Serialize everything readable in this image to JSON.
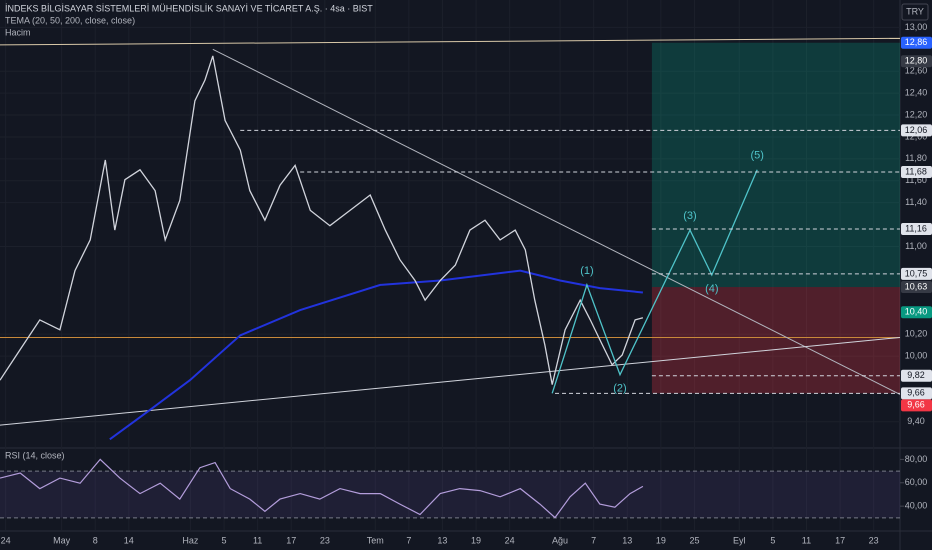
{
  "chart_data": {
    "type": "line",
    "title": "İNDEKS BİLGİSAYAR SİSTEMLERİ MÜHENDİSLİK SANAYİ VE TİCARET A.Ş. · 4sa · BIST",
    "indicator": "TEMA (20, 50, 200, close, close)",
    "volume_label": "Hacim",
    "currency": "TRY",
    "x": [
      0,
      3.6,
      7.1,
      10.7,
      13.4,
      16.1,
      18.8,
      20.5,
      22.3,
      25,
      27.7,
      29.5,
      32.1,
      34.8,
      36.6,
      38,
      40.2,
      42.9,
      44.6,
      47.3,
      50,
      52.7,
      55.4,
      58.9,
      62.5,
      66.1,
      68.8,
      71.4,
      74.1,
      75.9,
      78.6,
      81.3,
      83.9,
      86.6,
      89.3,
      92,
      93.8,
      95.5,
      97.3,
      98.6,
      100.9,
      103.6,
      105.4,
      107.1,
      109.3,
      111.1,
      113.4,
      114.8
    ],
    "series": [
      {
        "color": "#d1d4dc",
        "values": [
          9.78,
          10.06,
          10.33,
          10.24,
          10.78,
          11.06,
          11.79,
          11.15,
          11.61,
          11.7,
          11.51,
          11.06,
          11.42,
          12.33,
          12.52,
          12.74,
          12.15,
          11.88,
          11.51,
          11.24,
          11.56,
          11.74,
          11.33,
          11.19,
          11.33,
          11.47,
          11.15,
          10.88,
          10.69,
          10.51,
          10.69,
          10.83,
          11.15,
          11.24,
          11.06,
          11.15,
          10.97,
          10.51,
          10.1,
          9.74,
          10.24,
          10.51,
          10.33,
          10.15,
          9.92,
          10.01,
          10.33,
          10.35
        ]
      }
    ],
    "overlays": [
      {
        "color": "#2233dd",
        "x": [
          19.6,
          26.8,
          33.9,
          42.9,
          53.6,
          67.9,
          78.6,
          92.9,
          100,
          107.1,
          114.8
        ],
        "values": [
          9.24,
          9.51,
          9.78,
          10.19,
          10.42,
          10.65,
          10.69,
          10.78,
          10.69,
          10.62,
          10.58
        ]
      }
    ],
    "xlim": [
      0,
      160.7
    ],
    "xticks": [
      {
        "value": 1,
        "label": "24"
      },
      {
        "value": 11,
        "label": "May"
      },
      {
        "value": 17,
        "label": "8"
      },
      {
        "value": 23,
        "label": "14"
      },
      {
        "value": 34,
        "label": "Haz"
      },
      {
        "value": 40,
        "label": "5"
      },
      {
        "value": 46,
        "label": "11"
      },
      {
        "value": 52,
        "label": "17"
      },
      {
        "value": 58,
        "label": "23"
      },
      {
        "value": 67,
        "label": "Tem"
      },
      {
        "value": 73,
        "label": "7"
      },
      {
        "value": 79,
        "label": "13"
      },
      {
        "value": 85,
        "label": "19"
      },
      {
        "value": 91,
        "label": "24"
      },
      {
        "value": 100,
        "label": "Ağu"
      },
      {
        "value": 106,
        "label": "7"
      },
      {
        "value": 112,
        "label": "13"
      },
      {
        "value": 118,
        "label": "19"
      },
      {
        "value": 124,
        "label": "25"
      },
      {
        "value": 132,
        "label": "Eyl"
      },
      {
        "value": 138,
        "label": "5"
      },
      {
        "value": 144,
        "label": "11"
      },
      {
        "value": 150,
        "label": "17"
      },
      {
        "value": 156,
        "label": "23"
      }
    ],
    "ylim": [
      9.17,
      13.25
    ],
    "yticks": [
      {
        "value": 13,
        "label": "13,00"
      },
      {
        "value": 12.6,
        "label": "12,60"
      },
      {
        "value": 12.4,
        "label": "12,40"
      },
      {
        "value": 12.2,
        "label": "12,20"
      },
      {
        "value": 12,
        "label": "12,00"
      },
      {
        "value": 11.8,
        "label": "11,80"
      },
      {
        "value": 11.6,
        "label": "11,60"
      },
      {
        "value": 11.4,
        "label": "11,40"
      },
      {
        "value": 11,
        "label": "11,00"
      },
      {
        "value": 10.2,
        "label": "10,20"
      },
      {
        "value": 10,
        "label": "10,00"
      },
      {
        "value": 9.4,
        "label": "9,40"
      }
    ],
    "levels": [
      {
        "value": 12.86,
        "label": "12,86",
        "color": "#2962ff"
      },
      {
        "value": 12.8,
        "label": "12,80",
        "color": "#363a45"
      },
      {
        "value": 12.06,
        "label": "12,06",
        "color": "#e0e3eb",
        "x_from": 42.9
      },
      {
        "value": 11.68,
        "label": "11,68",
        "color": "#e0e3eb",
        "x_from": 53.6
      },
      {
        "value": 11.16,
        "label": "11,16",
        "color": "#e0e3eb",
        "x_from": 116.4
      },
      {
        "value": 10.75,
        "label": "10,75",
        "color": "#e0e3eb",
        "x_from": 116.4
      },
      {
        "value": 10.63,
        "label": "10,63",
        "color": "#363a45"
      },
      {
        "value": 10.4,
        "label": "10,40",
        "color": "#089981"
      },
      {
        "value": 9.82,
        "label": "9,82",
        "color": "#e0e3eb",
        "x_from": 116.4
      },
      {
        "value": 9.66,
        "label": "9,66",
        "color": "#e0e3eb",
        "x_from": 99.1
      },
      {
        "value": 9.66,
        "label": "9,66",
        "color": "#f23645"
      }
    ],
    "hline": {
      "value": 10.17,
      "color": "#c8893a"
    },
    "trendlines": [
      {
        "x": [
          38,
          160.7
        ],
        "values": [
          12.8,
          9.65
        ],
        "color": "#b2b5be"
      },
      {
        "x": [
          0,
          160.7
        ],
        "values": [
          12.84,
          12.9
        ],
        "color": "#d8c8a8"
      },
      {
        "x": [
          0,
          160.7
        ],
        "values": [
          9.37,
          10.17
        ],
        "color": "#d1d4dc"
      }
    ],
    "position": {
      "x_from": 116.4,
      "target": 12.86,
      "entry": 10.63,
      "stop": 9.66
    },
    "wave_path": {
      "x": [
        98.6,
        104.8,
        110.7,
        123.2,
        127.1,
        135.2
      ],
      "values": [
        9.66,
        10.65,
        9.83,
        11.15,
        10.74,
        11.7
      ]
    },
    "wave_labels": {
      "labels": [
        "(1)",
        "(2)",
        "(3)",
        "(4)",
        "(5)"
      ],
      "x": [
        104.8,
        110.7,
        123.2,
        127.1,
        135.2
      ],
      "values": [
        10.65,
        9.83,
        11.15,
        10.74,
        11.7
      ]
    },
    "rsi": {
      "title": "RSI (14, close)",
      "x": [
        0,
        3.6,
        7.1,
        10.7,
        14.3,
        17.9,
        21.4,
        25,
        28.6,
        32.1,
        35.7,
        38.4,
        41.1,
        44.6,
        47.3,
        50,
        53.6,
        57.1,
        60.7,
        64.3,
        67.9,
        71.4,
        75,
        78.6,
        82.1,
        85.7,
        89.3,
        92.9,
        96.4,
        99.1,
        101.8,
        104.5,
        107.1,
        109.8,
        112.5,
        114.8
      ],
      "values": [
        64,
        68.4,
        55,
        64,
        59.6,
        80,
        64,
        50.7,
        59.6,
        46,
        72.9,
        77.3,
        55,
        46,
        35.6,
        46,
        50.7,
        46,
        55,
        50.7,
        50.7,
        41.8,
        32.9,
        50.7,
        55,
        53.3,
        48,
        55,
        41.8,
        30.2,
        48,
        59.6,
        41.8,
        39.1,
        50.7,
        56.9
      ],
      "color": "#b39ddb",
      "ylim": [
        19.6,
        88.9
      ],
      "yticks": [
        {
          "value": 80,
          "label": "80,00"
        },
        {
          "value": 60,
          "label": "60,00"
        },
        {
          "value": 40,
          "label": "40,00"
        }
      ],
      "bands": [
        70,
        30
      ]
    }
  }
}
